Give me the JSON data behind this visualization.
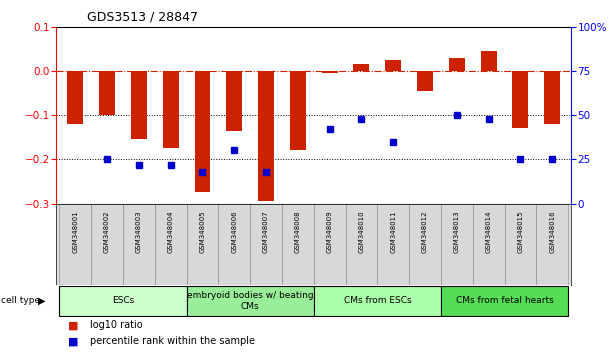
{
  "title": "GDS3513 / 28847",
  "samples": [
    "GSM348001",
    "GSM348002",
    "GSM348003",
    "GSM348004",
    "GSM348005",
    "GSM348006",
    "GSM348007",
    "GSM348008",
    "GSM348009",
    "GSM348010",
    "GSM348011",
    "GSM348012",
    "GSM348013",
    "GSM348014",
    "GSM348015",
    "GSM348016"
  ],
  "log10_ratio": [
    -0.12,
    -0.1,
    -0.155,
    -0.175,
    -0.275,
    -0.135,
    -0.295,
    -0.18,
    -0.005,
    0.015,
    0.025,
    -0.045,
    0.03,
    0.045,
    -0.13,
    -0.12
  ],
  "percentile_rank": [
    null,
    25,
    22,
    22,
    18,
    30,
    18,
    null,
    42,
    48,
    35,
    null,
    50,
    48,
    25,
    25
  ],
  "cell_types": [
    {
      "label": "ESCs",
      "start": 0,
      "end": 4,
      "color": "#ccffcc"
    },
    {
      "label": "embryoid bodies w/ beating\nCMs",
      "start": 4,
      "end": 8,
      "color": "#99ee99"
    },
    {
      "label": "CMs from ESCs",
      "start": 8,
      "end": 12,
      "color": "#aaffaa"
    },
    {
      "label": "CMs from fetal hearts",
      "start": 12,
      "end": 16,
      "color": "#55dd55"
    }
  ],
  "bar_color": "#cc2200",
  "dot_color": "#0000cc",
  "ylim_left": [
    -0.3,
    0.1
  ],
  "ylim_right": [
    0,
    100
  ],
  "yticks_left": [
    -0.3,
    -0.2,
    -0.1,
    0.0,
    0.1
  ],
  "yticks_right": [
    0,
    25,
    50,
    75,
    100
  ],
  "hline_dotted_vals": [
    -0.1,
    -0.2
  ],
  "background_color": "#ffffff",
  "bar_width": 0.5
}
